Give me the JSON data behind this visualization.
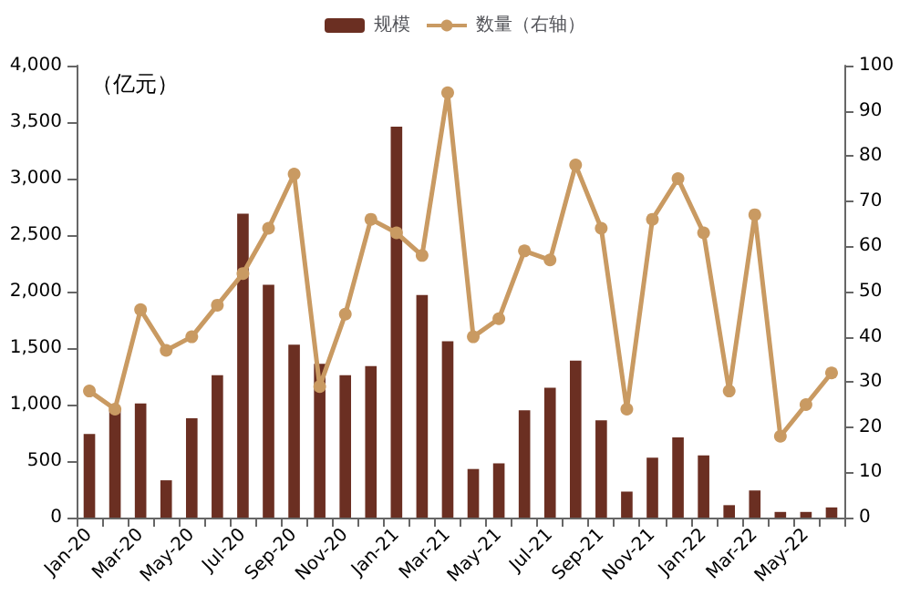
{
  "chart_data": {
    "type": "bar",
    "categories": [
      "Jan-20",
      null,
      "Mar-20",
      null,
      "May-20",
      null,
      "Jul-20",
      null,
      "Sep-20",
      null,
      "Nov-20",
      null,
      "Jan-21",
      null,
      "Mar-21",
      null,
      "May-21",
      null,
      "Jul-21",
      null,
      "Sep-21",
      null,
      "Nov-21",
      null,
      "Jan-22",
      null,
      "Mar-22",
      null,
      "May-22",
      null
    ],
    "ylabel": "（亿元）",
    "ylim": [
      0,
      4000
    ],
    "yticks": [
      {
        "value": 0,
        "label": "0"
      },
      {
        "value": 500,
        "label": "500"
      },
      {
        "value": 1000,
        "label": "1,000"
      },
      {
        "value": 1500,
        "label": "1,500"
      },
      {
        "value": 2000,
        "label": "2,000"
      },
      {
        "value": 2500,
        "label": "2,500"
      },
      {
        "value": 3000,
        "label": "3,000"
      },
      {
        "value": 3500,
        "label": "3,500"
      },
      {
        "value": 4000,
        "label": "4,000"
      }
    ],
    "y2lim": [
      0,
      100
    ],
    "y2ticks": [
      0,
      10,
      20,
      30,
      40,
      50,
      60,
      70,
      80,
      90,
      100
    ],
    "series": [
      {
        "name": "规模",
        "color": "#6b2f22",
        "values": [
          740,
          950,
          1010,
          330,
          880,
          1260,
          2690,
          2060,
          1530,
          1360,
          1260,
          1340,
          3460,
          1970,
          1560,
          430,
          480,
          950,
          1150,
          1390,
          860,
          230,
          530,
          710,
          550,
          110,
          240,
          50,
          50,
          90
        ]
      },
      {
        "name": "数量（右轴）",
        "type": "line",
        "axis": "y2",
        "color": "#c99a62",
        "values": [
          28,
          24,
          46,
          37,
          40,
          47,
          54,
          64,
          76,
          29,
          45,
          66,
          63,
          58,
          94,
          40,
          44,
          59,
          57,
          78,
          64,
          24,
          66,
          75,
          63,
          28,
          67,
          18,
          25,
          32
        ]
      }
    ],
    "legend": "top",
    "grid": false,
    "marker": "circle"
  }
}
